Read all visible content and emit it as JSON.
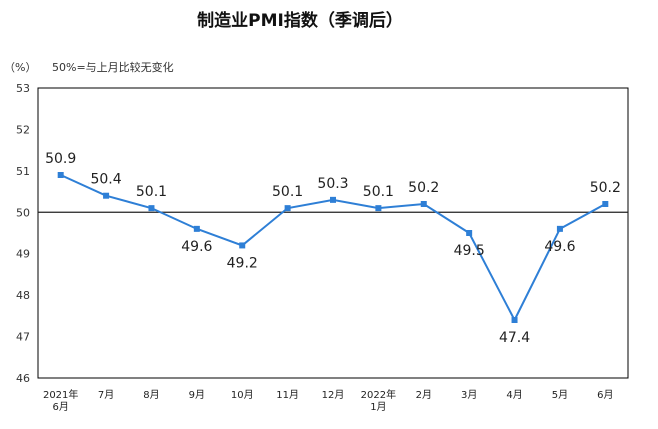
{
  "chart_data": {
    "type": "line",
    "title": "制造业PMI指数（季调后）",
    "unit_label": "（%）",
    "note": "50%=与上月比较无变化",
    "ylim": [
      46,
      53
    ],
    "yticks": [
      46,
      47,
      48,
      49,
      50,
      51,
      52,
      53
    ],
    "reference_line": 50,
    "categories": [
      "2021年6月",
      "7月",
      "8月",
      "9月",
      "10月",
      "11月",
      "12月",
      "2022年1月",
      "2月",
      "3月",
      "4月",
      "5月",
      "6月"
    ],
    "category_lines": [
      [
        "2021年",
        "6月"
      ],
      [
        "7月"
      ],
      [
        "8月"
      ],
      [
        "9月"
      ],
      [
        "10月"
      ],
      [
        "11月"
      ],
      [
        "12月"
      ],
      [
        "2022年",
        "1月"
      ],
      [
        "2月"
      ],
      [
        "3月"
      ],
      [
        "4月"
      ],
      [
        "5月"
      ],
      [
        "6月"
      ]
    ],
    "values": [
      50.9,
      50.4,
      50.1,
      49.6,
      49.2,
      50.1,
      50.3,
      50.1,
      50.2,
      49.5,
      47.4,
      49.6,
      50.2
    ],
    "data_labels": [
      "50.9",
      "50.4",
      "50.1",
      "49.6",
      "49.2",
      "50.1",
      "50.3",
      "50.1",
      "50.2",
      "49.5",
      "47.4",
      "49.6",
      "50.2"
    ],
    "label_positions": [
      "above",
      "above",
      "above",
      "below",
      "below",
      "above",
      "above",
      "above",
      "above",
      "below",
      "below",
      "below",
      "above"
    ],
    "line_color": "#2e7fd6",
    "reference_color": "#222222",
    "grid": false
  }
}
